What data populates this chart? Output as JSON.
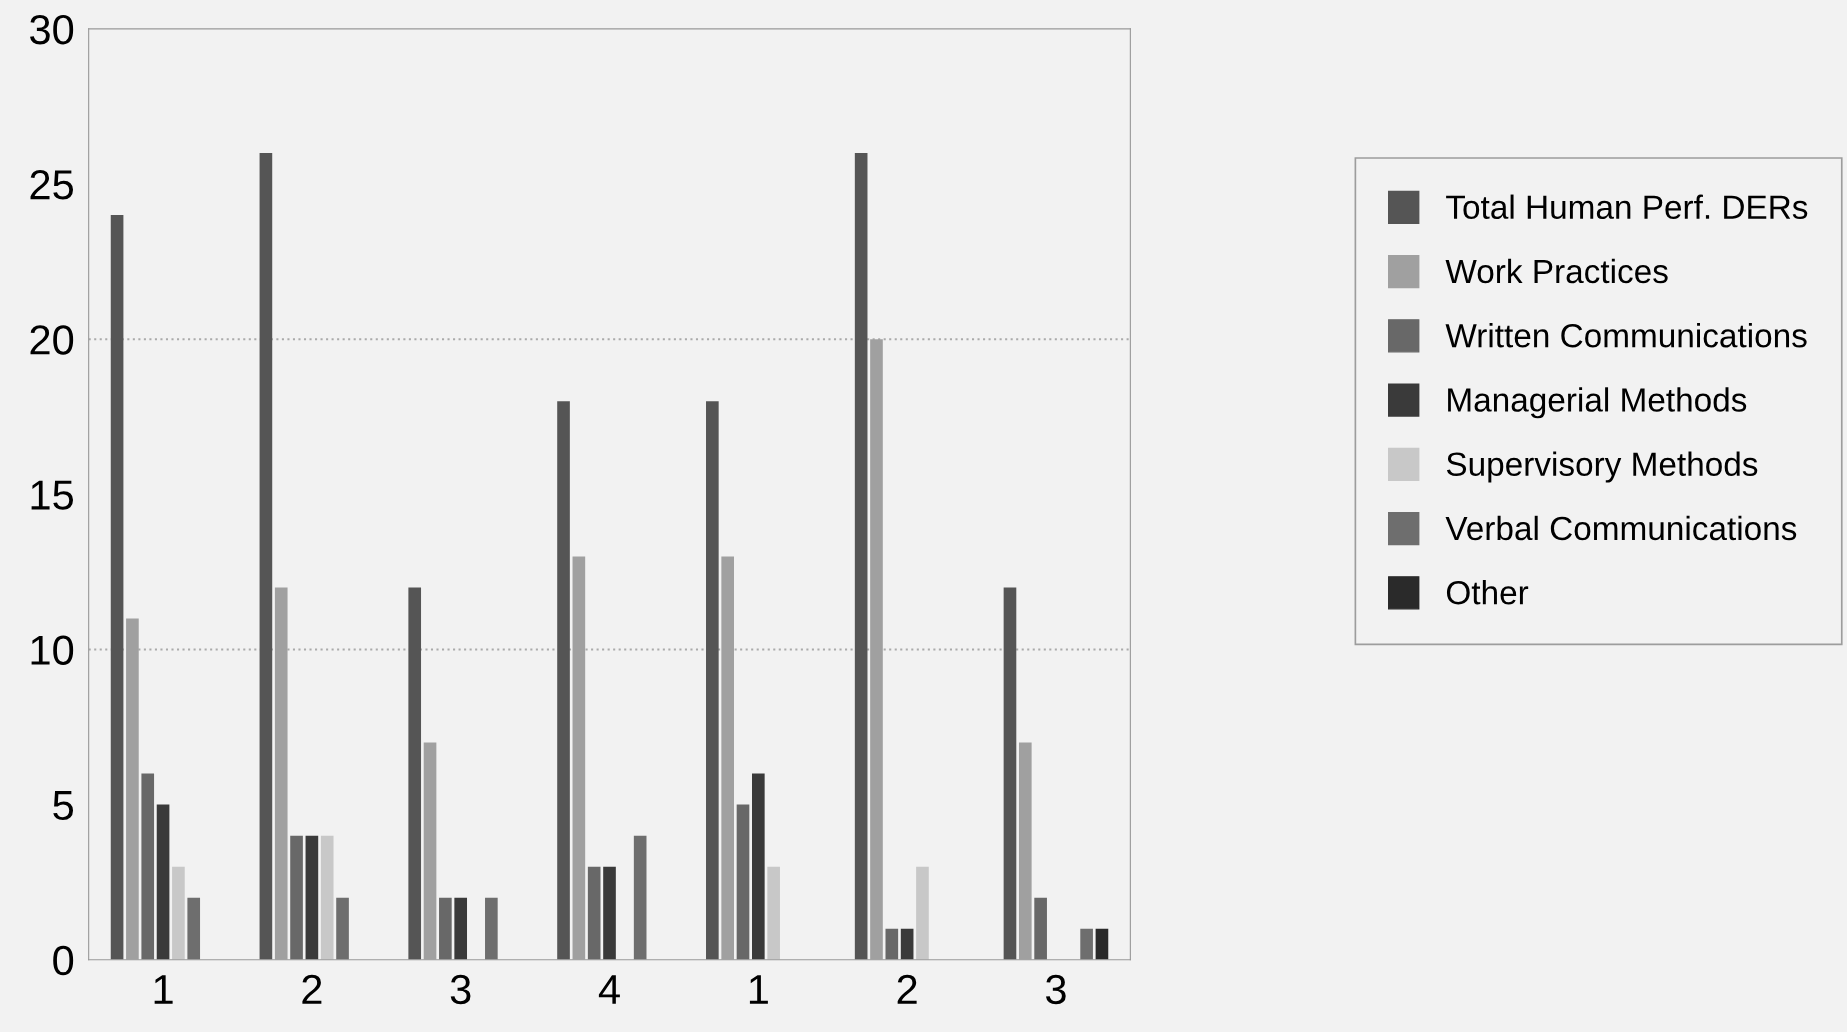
{
  "chart_data": {
    "type": "bar",
    "categories": [
      "1",
      "2",
      "3",
      "4",
      "1",
      "2",
      "3"
    ],
    "series": [
      {
        "name": "Total Human Perf. DERs",
        "color": "#555555",
        "values": [
          24,
          26,
          12,
          18,
          18,
          26,
          12
        ]
      },
      {
        "name": "Work Practices",
        "color": "#a0a0a0",
        "values": [
          11,
          12,
          7,
          13,
          13,
          20,
          7
        ]
      },
      {
        "name": "Written Communications",
        "color": "#686868",
        "values": [
          6,
          4,
          2,
          3,
          5,
          1,
          2
        ]
      },
      {
        "name": "Managerial Methods",
        "color": "#3a3a3a",
        "values": [
          5,
          4,
          2,
          3,
          6,
          1,
          0
        ]
      },
      {
        "name": "Supervisory Methods",
        "color": "#c8c8c8",
        "values": [
          3,
          4,
          0,
          0,
          3,
          3,
          0
        ]
      },
      {
        "name": "Verbal Communications",
        "color": "#6e6e6e",
        "values": [
          2,
          2,
          2,
          4,
          0,
          0,
          1
        ]
      },
      {
        "name": "Other",
        "color": "#2a2a2a",
        "values": [
          0,
          0,
          0,
          0,
          0,
          0,
          1
        ]
      }
    ],
    "ylim": [
      0,
      30
    ],
    "yticks": [
      0,
      5,
      10,
      15,
      20,
      25,
      30
    ],
    "ref_lines": [
      {
        "axis": "y",
        "value": 10,
        "color": "#aaaaaa",
        "line_style": "dotted"
      },
      {
        "axis": "y",
        "value": 20,
        "color": "#aaaaaa",
        "line_style": "dotted"
      }
    ],
    "grid": false,
    "legend": "right"
  }
}
